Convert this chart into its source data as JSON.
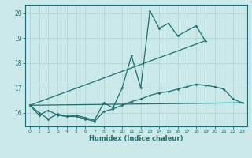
{
  "xlabel": "Humidex (Indice chaleur)",
  "xlim": [
    -0.5,
    23.5
  ],
  "ylim": [
    15.45,
    20.35
  ],
  "xticks": [
    0,
    1,
    2,
    3,
    4,
    5,
    6,
    7,
    8,
    9,
    10,
    11,
    12,
    13,
    14,
    15,
    16,
    17,
    18,
    19,
    20,
    21,
    22,
    23
  ],
  "yticks": [
    16,
    17,
    18,
    19,
    20
  ],
  "bg_color": "#cce9e9",
  "grid_color": "#b0d0d0",
  "line_color": "#1a7070",
  "zigzag_x": [
    0,
    1,
    2,
    3,
    4,
    5,
    6,
    7,
    8,
    9,
    10,
    11,
    12,
    13,
    14,
    15,
    16,
    18,
    19
  ],
  "zigzag_y": [
    16.3,
    15.9,
    16.1,
    15.9,
    15.85,
    15.9,
    15.8,
    15.7,
    16.4,
    16.2,
    17.0,
    18.3,
    17.0,
    20.1,
    19.4,
    19.6,
    19.1,
    19.5,
    18.9
  ],
  "smooth_x": [
    0,
    1,
    2,
    3,
    4,
    5,
    6,
    7,
    8,
    9,
    10,
    11,
    12,
    13,
    14,
    15,
    16,
    17,
    18,
    19,
    20,
    21,
    22,
    23
  ],
  "smooth_y": [
    16.3,
    16.0,
    15.75,
    15.95,
    15.85,
    15.85,
    15.75,
    15.65,
    16.05,
    16.15,
    16.3,
    16.45,
    16.55,
    16.7,
    16.8,
    16.85,
    16.95,
    17.05,
    17.15,
    17.1,
    17.05,
    16.95,
    16.55,
    16.4
  ],
  "trend1_x": [
    0,
    19
  ],
  "trend1_y": [
    16.3,
    18.9
  ],
  "trend2_x": [
    0,
    23
  ],
  "trend2_y": [
    16.3,
    16.4
  ]
}
